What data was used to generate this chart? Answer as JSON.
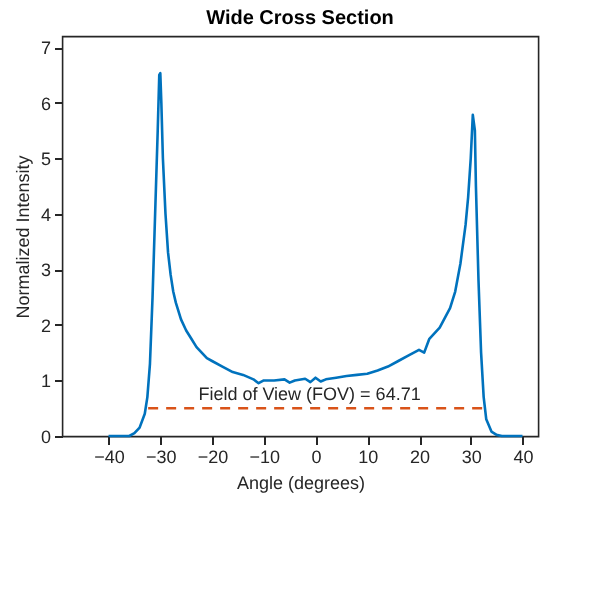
{
  "chart_data": {
    "type": "line",
    "title": "Wide Cross Section",
    "xlabel": "Angle (degrees)",
    "ylabel": "Normalized Intensity",
    "xlim": [
      -49,
      43
    ],
    "xticks": [
      -40,
      -30,
      -20,
      -10,
      0,
      10,
      20,
      30,
      40
    ],
    "ylim": [
      0,
      7.2
    ],
    "yticks": [
      0,
      1,
      2,
      3,
      4,
      5,
      6,
      7
    ],
    "grid": false,
    "series": [
      {
        "color": "#0072bd",
        "line_style": "solid",
        "x": [
          -40,
          -36,
          -35,
          -34,
          -33,
          -32.5,
          -32,
          -31.5,
          -31,
          -30.5,
          -30.2,
          -30,
          -29.8,
          -29.5,
          -29,
          -28.5,
          -28,
          -27.5,
          -27,
          -26,
          -25,
          -24,
          -23,
          -22,
          -21,
          -20,
          -18,
          -16,
          -14,
          -12,
          -11,
          -10,
          -8,
          -6,
          -5,
          -4,
          -2,
          -1,
          0,
          1,
          2,
          4,
          6,
          8,
          10,
          12,
          14,
          16,
          18,
          20,
          21,
          22,
          24,
          26,
          27,
          28,
          29,
          29.5,
          30,
          30.4,
          30.8,
          31,
          31.5,
          32,
          32.5,
          33,
          34,
          35,
          36,
          40
        ],
        "values": [
          0,
          0,
          0.05,
          0.15,
          0.4,
          0.7,
          1.3,
          2.5,
          4,
          5.5,
          6.5,
          6.53,
          6,
          5,
          4,
          3.3,
          2.9,
          2.6,
          2.4,
          2.1,
          1.9,
          1.75,
          1.6,
          1.5,
          1.4,
          1.35,
          1.25,
          1.15,
          1.1,
          1.02,
          0.95,
          1.0,
          1.0,
          1.02,
          0.96,
          1.0,
          1.03,
          0.97,
          1.05,
          0.98,
          1.02,
          1.05,
          1.08,
          1.1,
          1.12,
          1.18,
          1.25,
          1.35,
          1.45,
          1.55,
          1.5,
          1.75,
          1.95,
          2.3,
          2.6,
          3.1,
          3.8,
          4.3,
          5,
          5.78,
          5.5,
          4.5,
          2.8,
          1.5,
          0.7,
          0.3,
          0.08,
          0.02,
          0,
          0
        ]
      },
      {
        "type": "line",
        "color": "#d95319",
        "line_style": "dashed",
        "x": [
          -32.35,
          32.36
        ],
        "values": [
          0.5,
          0.5
        ]
      }
    ],
    "annotations": [
      "Field of View (FOV) = 64.71"
    ]
  }
}
